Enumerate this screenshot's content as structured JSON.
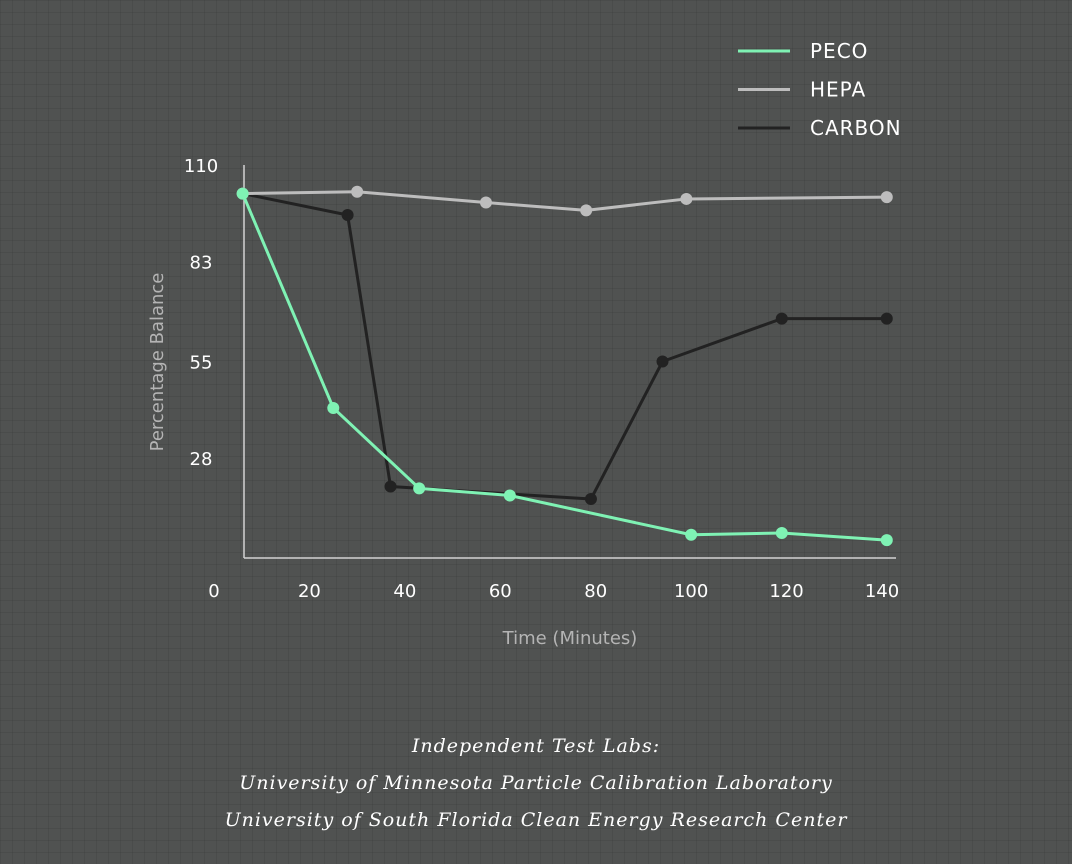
{
  "chart_data": {
    "type": "line",
    "title": "",
    "xlabel": "Time (Minutes)",
    "ylabel": "Percentage Balance",
    "xlim": [
      0,
      140
    ],
    "ylim": [
      0,
      110
    ],
    "xticks": [
      0,
      20,
      40,
      60,
      80,
      100,
      120,
      140
    ],
    "yticks": [
      28,
      55,
      83,
      110
    ],
    "legend_position": "top-right",
    "series": [
      {
        "name": "PECO",
        "color": "#7ff2b4",
        "x": [
          6,
          25,
          43,
          62,
          100,
          119,
          141
        ],
        "y": [
          102,
          42,
          19.5,
          17.5,
          6.5,
          7,
          5
        ]
      },
      {
        "name": "HEPA",
        "color": "#bdbdbd",
        "x": [
          6,
          30,
          57,
          78,
          99,
          141
        ],
        "y": [
          102,
          102.5,
          99.5,
          97.3,
          100.5,
          101
        ]
      },
      {
        "name": "CARBON",
        "color": "#222222",
        "x": [
          6,
          28,
          37,
          79,
          94,
          119,
          141
        ],
        "y": [
          102,
          96,
          20,
          16.5,
          55,
          67,
          67
        ]
      }
    ]
  },
  "credits": {
    "line1": "Independent Test Labs:",
    "line2": "University of Minnesota Particle Calibration Laboratory",
    "line3": "University of South Florida Clean Energy Research Center"
  }
}
